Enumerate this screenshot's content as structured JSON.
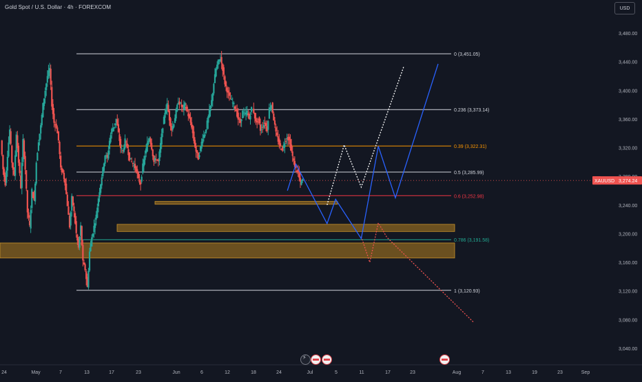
{
  "header": {
    "title": "Gold Spot / U.S. Dollar · 4h · FOREXCOM",
    "currency_label": "USD"
  },
  "price_badge": {
    "symbol": "XAUUSD",
    "value": "3,274.24",
    "price": 3274.24
  },
  "colors": {
    "background": "#131722",
    "up": "#26a69a",
    "down": "#ef5350",
    "forecast_blue": "#2962ff",
    "forecast_white": "#ffffff",
    "forecast_red": "#ef5350",
    "fib_level_orange": "#ff9800",
    "fib_level_red": "#f23645",
    "fib_level_teal": "#22ab94",
    "zone_fill": "#8a6420"
  },
  "chart_data": {
    "type": "candlestick",
    "ylim": [
      3020,
      3500
    ],
    "y_ticks": [
      3040,
      3080,
      3120,
      3160,
      3200,
      3240,
      3280,
      3320,
      3360,
      3400,
      3440,
      3480
    ],
    "y_tick_labels": [
      "3,040.00",
      "3,080.00",
      "3,120.00",
      "3,160.00",
      "3,200.00",
      "3,240.00",
      "3,280.00",
      "3,320.00",
      "3,360.00",
      "3,400.00",
      "3,440.00",
      "3,480.00"
    ],
    "x_tick_labels": [
      "24",
      "May",
      "7",
      "13",
      "17",
      "23",
      "Jun",
      "6",
      "12",
      "18",
      "24",
      "Jul",
      "5",
      "11",
      "17",
      "23",
      "Aug",
      "7",
      "13",
      "19",
      "23",
      "Sep"
    ],
    "fib_levels": [
      {
        "label": "0 (3,451.05)",
        "price": 3451.05,
        "color": "#d1d4dc"
      },
      {
        "label": "0.236 (3,373.14)",
        "price": 3373.14,
        "color": "#d1d4dc"
      },
      {
        "label": "0.39 (3,322.31)",
        "price": 3322.31,
        "color": "#ff9800"
      },
      {
        "label": "0.5 (3,285.99)",
        "price": 3285.99,
        "color": "#d1d4dc"
      },
      {
        "label": "0.6 (3,252.98)",
        "price": 3252.98,
        "color": "#f23645"
      },
      {
        "label": "0.786 (3,191.58)",
        "price": 3191.58,
        "color": "#22ab94"
      },
      {
        "label": "1 (3,120.93)",
        "price": 3120.93,
        "color": "#d1d4dc"
      }
    ],
    "zones": [
      {
        "price_top": 3245,
        "price_bottom": 3241
      },
      {
        "price_top": 3213,
        "price_bottom": 3203
      },
      {
        "price_top": 3187,
        "price_bottom": 3166
      }
    ],
    "anchors": [
      {
        "label": "Apr 24",
        "price_path": [
          3330,
          3290,
          3270,
          3310,
          3345,
          3300,
          3280,
          3340,
          3300,
          3265,
          3330,
          3290,
          3230,
          3210,
          3260,
          3245,
          3300,
          3330,
          3350,
          3380,
          3400,
          3420,
          3430,
          3380,
          3355,
          3350,
          3330,
          3290,
          3285
        ]
      },
      {
        "label": "May 13",
        "price_path": [
          3270,
          3240,
          3210,
          3250,
          3230,
          3200,
          3180,
          3210,
          3160,
          3150,
          3125,
          3175,
          3195,
          3210,
          3225,
          3250,
          3270,
          3290,
          3310,
          3305,
          3330,
          3345,
          3350,
          3360,
          3340,
          3320,
          3315,
          3330
        ]
      },
      {
        "label": "May 23",
        "price_path": [
          3320,
          3305,
          3300,
          3295,
          3290,
          3275,
          3270,
          3295,
          3310,
          3325,
          3335,
          3320,
          3300,
          3305,
          3300,
          3325,
          3350,
          3370,
          3380,
          3360,
          3345,
          3355,
          3370,
          3385,
          3380,
          3375
        ]
      },
      {
        "label": "Jun 6",
        "price_path": [
          3380,
          3370,
          3360,
          3350,
          3330,
          3315,
          3305,
          3320,
          3335,
          3340,
          3355,
          3370,
          3385,
          3410,
          3430,
          3440,
          3445,
          3430,
          3410,
          3400,
          3390,
          3385,
          3380,
          3372,
          3360,
          3355,
          3370
        ]
      },
      {
        "label": "Jun 18",
        "price_path": [
          3365,
          3370,
          3360,
          3375,
          3370,
          3355,
          3360,
          3345,
          3350,
          3355,
          3345,
          3375,
          3380,
          3360,
          3340,
          3330,
          3320,
          3318,
          3328,
          3335,
          3330,
          3315,
          3300,
          3290,
          3285,
          3270,
          3274.24
        ]
      }
    ],
    "forecast_blue": [
      {
        "date": "Jun 27",
        "price": 3260
      },
      {
        "date": "Jun 29",
        "price": 3297
      },
      {
        "date": "Jul 5",
        "price": 3214
      },
      {
        "date": "Jul 7",
        "price": 3248
      },
      {
        "date": "Jul 13",
        "price": 3193
      },
      {
        "date": "Jul 17",
        "price": 3322
      },
      {
        "date": "Jul 21",
        "price": 3250
      },
      {
        "date": "Jul 31",
        "price": 3437
      }
    ],
    "forecast_white": [
      {
        "date": "Jul 5",
        "price": 3240
      },
      {
        "date": "Jul 9",
        "price": 3324
      },
      {
        "date": "Jul 13",
        "price": 3265
      },
      {
        "date": "Jul 23",
        "price": 3434
      }
    ],
    "forecast_red": [
      {
        "date": "Jul 13",
        "price": 3196
      },
      {
        "date": "Jul 15",
        "price": 3160
      },
      {
        "date": "Jul 17",
        "price": 3215
      },
      {
        "date": "Jul 19",
        "price": 3195
      },
      {
        "date": "Aug 5",
        "price": 3076
      }
    ]
  }
}
